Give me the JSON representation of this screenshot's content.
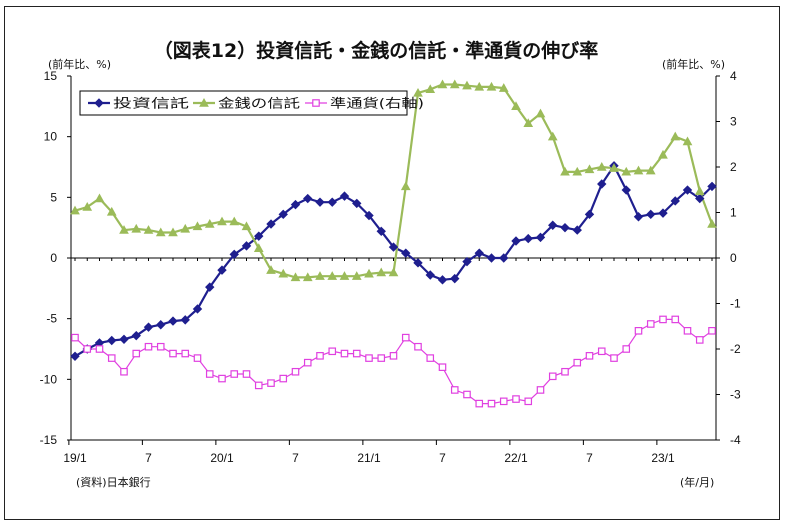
{
  "chart_data": {
    "type": "line",
    "title": "（図表12）投資信託・金銭の信託・準通貨の伸び率",
    "left_unit": "(前年比、%)",
    "right_unit": "(前年比、%)",
    "source": "(資料)日本銀行",
    "x_unit": "(年/月)",
    "left_ylim": [
      -15,
      15
    ],
    "right_ylim": [
      -4,
      4
    ],
    "left_ticks": [
      "15",
      "10",
      "5",
      "0",
      "-5",
      "-10",
      "-15"
    ],
    "right_ticks": [
      "4",
      "3",
      "2",
      "1",
      "0",
      "-1",
      "-2",
      "-3",
      "-4"
    ],
    "x_ticks": [
      "19/1",
      "7",
      "20/1",
      "7",
      "21/1",
      "7",
      "22/1",
      "7",
      "23/1"
    ],
    "x": [
      "2019-01",
      "2019-02",
      "2019-03",
      "2019-04",
      "2019-05",
      "2019-06",
      "2019-07",
      "2019-08",
      "2019-09",
      "2019-10",
      "2019-11",
      "2019-12",
      "2020-01",
      "2020-02",
      "2020-03",
      "2020-04",
      "2020-05",
      "2020-06",
      "2020-07",
      "2020-08",
      "2020-09",
      "2020-10",
      "2020-11",
      "2020-12",
      "2021-01",
      "2021-02",
      "2021-03",
      "2021-04",
      "2021-05",
      "2021-06",
      "2021-07",
      "2021-08",
      "2021-09",
      "2021-10",
      "2021-11",
      "2021-12",
      "2022-01",
      "2022-02",
      "2022-03",
      "2022-04",
      "2022-05",
      "2022-06",
      "2022-07",
      "2022-08",
      "2022-09",
      "2022-10",
      "2022-11",
      "2022-12",
      "2023-01",
      "2023-02",
      "2023-03",
      "2023-04",
      "2023-05"
    ],
    "grid": false,
    "legend_position": "top-left",
    "series": [
      {
        "name": "投資信託",
        "axis": "left",
        "color": "#1f1f8f",
        "marker": "diamond",
        "values": [
          -8.1,
          -7.5,
          -7.0,
          -6.8,
          -6.7,
          -6.4,
          -5.7,
          -5.5,
          -5.2,
          -5.1,
          -4.2,
          -2.4,
          -1.0,
          0.3,
          1.0,
          1.8,
          2.8,
          3.6,
          4.4,
          4.9,
          4.6,
          4.6,
          5.1,
          4.5,
          3.5,
          2.2,
          0.9,
          0.4,
          -0.4,
          -1.4,
          -1.8,
          -1.7,
          -0.3,
          0.4,
          0.0,
          0.0,
          1.4,
          1.6,
          1.7,
          2.7,
          2.5,
          2.3,
          3.6,
          6.1,
          7.6,
          5.6,
          3.4,
          3.6,
          3.7,
          4.7,
          5.6,
          4.9,
          5.9
        ]
      },
      {
        "name": "金銭の信託",
        "axis": "left",
        "color": "#9bbb59",
        "marker": "triangle",
        "values": [
          3.9,
          4.2,
          4.9,
          3.8,
          2.3,
          2.4,
          2.3,
          2.1,
          2.1,
          2.4,
          2.6,
          2.8,
          3.0,
          3.0,
          2.6,
          0.8,
          -1.0,
          -1.3,
          -1.6,
          -1.6,
          -1.5,
          -1.5,
          -1.5,
          -1.5,
          -1.3,
          -1.2,
          -1.2,
          5.9,
          13.6,
          13.9,
          14.3,
          14.3,
          14.2,
          14.1,
          14.1,
          14.0,
          12.5,
          11.1,
          11.9,
          10.0,
          7.1,
          7.1,
          7.3,
          7.5,
          7.4,
          7.1,
          7.2,
          7.2,
          8.5,
          10.0,
          9.6,
          5.5,
          2.8
        ]
      },
      {
        "name": "準通貨(右軸)",
        "axis": "right",
        "color": "#e040e0",
        "marker": "square",
        "values": [
          -1.75,
          -2.0,
          -2.0,
          -2.2,
          -2.5,
          -2.1,
          -1.95,
          -1.95,
          -2.1,
          -2.1,
          -2.2,
          -2.55,
          -2.65,
          -2.55,
          -2.55,
          -2.8,
          -2.75,
          -2.65,
          -2.5,
          -2.3,
          -2.15,
          -2.05,
          -2.1,
          -2.1,
          -2.2,
          -2.2,
          -2.15,
          -1.75,
          -1.95,
          -2.2,
          -2.4,
          -2.9,
          -3.0,
          -3.2,
          -3.2,
          -3.15,
          -3.1,
          -3.15,
          -2.9,
          -2.6,
          -2.5,
          -2.3,
          -2.15,
          -2.05,
          -2.2,
          -2.0,
          -1.6,
          -1.45,
          -1.35,
          -1.35,
          -1.6,
          -1.8,
          -1.6
        ]
      }
    ]
  }
}
